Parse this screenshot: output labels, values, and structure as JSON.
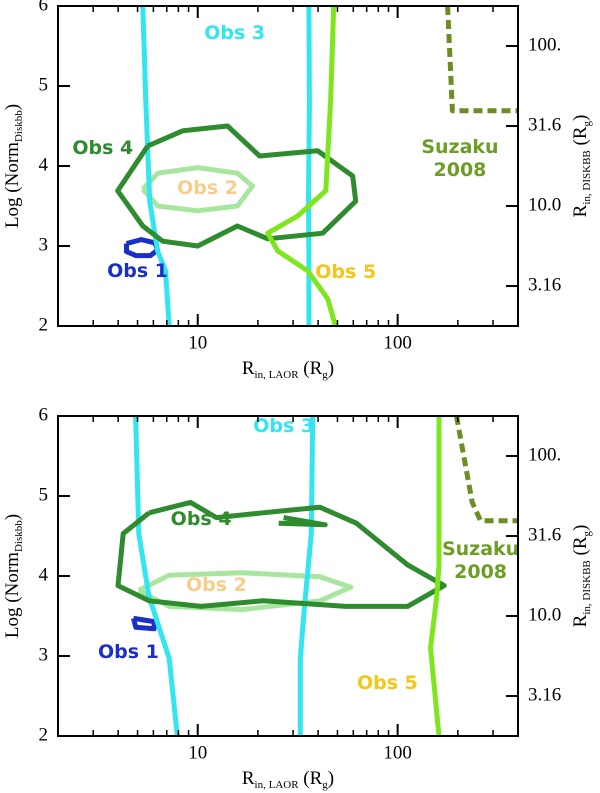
{
  "chart_data": [
    {
      "type": "line",
      "xlog": true,
      "y2log": true,
      "xlim": [
        2,
        400
      ],
      "ylim": [
        2,
        6
      ],
      "y2lim": [
        1.778,
        177.8
      ],
      "xticks": [
        10,
        100
      ],
      "yticks": [
        2,
        3,
        4,
        5,
        6
      ],
      "y2ticks": [
        {
          "value": 3.16,
          "label": "3.16"
        },
        {
          "value": 10,
          "label": "10.0"
        },
        {
          "value": 31.6,
          "label": "31.6"
        },
        {
          "value": 100,
          "label": "100."
        }
      ],
      "xlabel": [
        {
          "text": "R"
        },
        {
          "sub": "in, LAOR"
        },
        {
          "text": " (R"
        },
        {
          "sub": "g"
        },
        {
          "text": ")"
        }
      ],
      "ylabel": [
        {
          "text": "Log (Norm"
        },
        {
          "sub": "Diskbb"
        },
        {
          "text": ")"
        }
      ],
      "y2label": [
        {
          "text": "R"
        },
        {
          "sub": "in, DISKBB"
        },
        {
          "text": " (R"
        },
        {
          "sub": "g"
        },
        {
          "text": ")"
        }
      ],
      "series": [
        {
          "name": "Obs 1",
          "color": "#1a2fc8",
          "label_color": "#1a2fc8",
          "x": [
            4.4,
            5.2,
            6.1,
            6.3,
            5.8,
            4.9,
            4.4,
            4.4
          ],
          "y": [
            3.03,
            3.08,
            3.04,
            2.95,
            2.88,
            2.88,
            2.93,
            3.03
          ]
        },
        {
          "name": "Obs 2",
          "color": "#a8e6a0",
          "label_color": "#f5cf8a",
          "x": [
            5.31,
            6.31,
            10,
            15.8,
            18.8,
            15.8,
            10,
            6.31,
            5.31
          ],
          "y": [
            3.71,
            3.91,
            3.98,
            3.91,
            3.75,
            3.5,
            3.44,
            3.5,
            3.71
          ]
        },
        {
          "name": "Obs 3",
          "color": "#33e5f0",
          "label_color": "#33e5f0",
          "x": [
            5.31,
            5.5,
            5.75,
            6.3,
            6.9,
            7.2,
            null,
            36,
            36.2,
            35.8,
            36,
            36
          ],
          "y": [
            6,
            4.81,
            3.56,
            2.94,
            2.69,
            2,
            null,
            6,
            4.8,
            3.6,
            2.8,
            2
          ]
        },
        {
          "name": "Obs 4",
          "color": "#2e8b2e",
          "label_color": "#2e8b2e",
          "x": [
            5.62,
            8.41,
            14.1,
            20.4,
            39.8,
            59.6,
            61.7,
            42.2,
            22.4,
            15.8,
            10,
            6.68,
            5.31,
            3.98,
            5.62
          ],
          "y": [
            4.25,
            4.44,
            4.5,
            4.125,
            4.19,
            3.875,
            3.56,
            3.16,
            3.09,
            3.25,
            3.0,
            3.06,
            3.25,
            3.69,
            4.25
          ]
        },
        {
          "name": "Obs 5",
          "color": "#7fe61e",
          "label_color": "#f5c518",
          "x": [
            47.9,
            46.2,
            43.7,
            31.6,
            22.4,
            25.1,
            35.5,
            44.7,
            48.9
          ],
          "y": [
            6,
            4.81,
            3.69,
            3.375,
            3.16,
            2.94,
            2.69,
            2.34,
            2
          ]
        },
        {
          "name": "Suzaku 2008",
          "color": "#6b8e23",
          "label_color": "#6b9e23",
          "dashed": true,
          "x": [
            177.8,
            188,
            398
          ],
          "y": [
            6,
            4.69,
            4.69
          ]
        }
      ]
    },
    {
      "type": "line",
      "xlog": true,
      "y2log": true,
      "xlim": [
        2,
        400
      ],
      "ylim": [
        2,
        6
      ],
      "y2lim": [
        1.778,
        177.8
      ],
      "xticks": [
        10,
        100
      ],
      "yticks": [
        2,
        3,
        4,
        5,
        6
      ],
      "y2ticks": [
        {
          "value": 3.16,
          "label": "3.16"
        },
        {
          "value": 10,
          "label": "10.0"
        },
        {
          "value": 31.6,
          "label": "31.6"
        },
        {
          "value": 100,
          "label": "100."
        }
      ],
      "xlabel": [
        {
          "text": "R"
        },
        {
          "sub": "in, LAOR"
        },
        {
          "text": " (R"
        },
        {
          "sub": "g"
        },
        {
          "text": ")"
        }
      ],
      "ylabel": [
        {
          "text": "Log (Norm"
        },
        {
          "sub": "Diskbb"
        },
        {
          "text": ")"
        }
      ],
      "y2label": [
        {
          "text": "R"
        },
        {
          "sub": "in, DISKBB"
        },
        {
          "text": " (R"
        },
        {
          "sub": "g"
        },
        {
          "text": ")"
        }
      ],
      "series": [
        {
          "name": "Obs 1",
          "color": "#1a2fc8",
          "label_color": "#1a2fc8",
          "x": [
            4.77,
            6.05,
            6.05,
            4.9,
            4.77
          ],
          "y": [
            3.47,
            3.43,
            3.34,
            3.36,
            3.47
          ]
        },
        {
          "name": "Obs 2",
          "color": "#a8e6a0",
          "label_color": "#f5cf8a",
          "x": [
            5.07,
            7.2,
            16.7,
            40.8,
            58.4,
            40.8,
            16.7,
            7.2,
            5.07
          ],
          "y": [
            3.82,
            4.01,
            4.04,
            3.99,
            3.86,
            3.69,
            3.58,
            3.62,
            3.82
          ]
        },
        {
          "name": "Obs 3",
          "color": "#33e5f0",
          "label_color": "#33e5f0",
          "x": [
            4.89,
            5.07,
            5.7,
            7.2,
            7.9,
            null,
            37.6,
            37,
            34.2,
            32.6,
            32.6
          ],
          "y": [
            6,
            4.53,
            3.75,
            2.97,
            2,
            null,
            6,
            4.53,
            3.62,
            2.97,
            2
          ]
        },
        {
          "name": "Obs 4",
          "color": "#2e8b2e",
          "label_color": "#2e8b2e",
          "x": [
            5.71,
            9.2,
            12.4,
            21.2,
            40.8,
            62.2,
            112,
            171,
            112,
            55.1,
            21.2,
            10.4,
            5.71,
            3.99,
            4.24,
            5.71,
            null,
            25.4,
            43.4,
            26.9
          ],
          "y": [
            4.79,
            4.92,
            4.73,
            4.79,
            4.86,
            4.66,
            4.14,
            3.88,
            3.62,
            3.62,
            3.69,
            3.62,
            3.69,
            3.88,
            4.53,
            4.79,
            null,
            4.66,
            4.64,
            4.73
          ]
        },
        {
          "name": "Obs 5",
          "color": "#7fe61e",
          "label_color": "#f5c518",
          "x": [
            161,
            161,
            157,
            146,
            161
          ],
          "y": [
            6,
            4.14,
            3.75,
            3.1,
            2
          ]
        },
        {
          "name": "Suzaku 2008",
          "color": "#6b8e23",
          "label_color": "#6b9e23",
          "dashed": true,
          "x": [
            197,
            236,
            260,
            398
          ],
          "y": [
            6,
            4.92,
            4.69,
            4.69
          ]
        }
      ]
    }
  ]
}
